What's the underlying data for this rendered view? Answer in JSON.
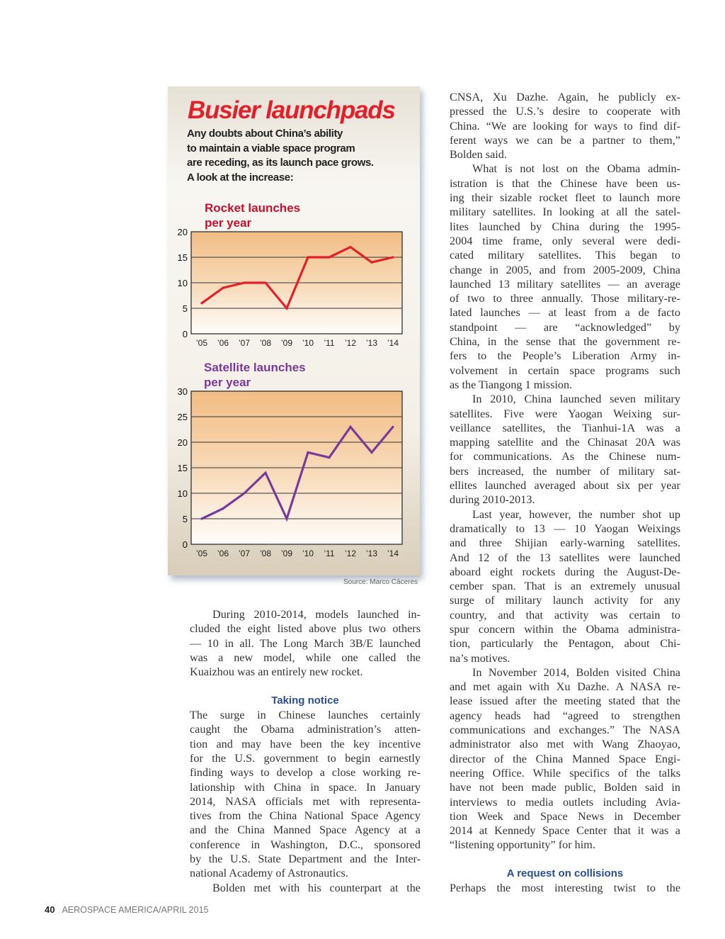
{
  "sidebar": {
    "title": "Busier launchpads",
    "subtitle_lines": [
      "Any doubts about China’s ability",
      "to maintain a viable space program",
      "are receding, as its launch pace grows.",
      "A look at the increase:"
    ],
    "source": "Source: Marco Cáceres"
  },
  "chart_data": [
    {
      "type": "line",
      "title_lines": [
        "Rocket launches",
        "per year"
      ],
      "categories": [
        "’05",
        "’06",
        "’07",
        "’08",
        "’09",
        "’10",
        "’11",
        "’12",
        "’13",
        "’14"
      ],
      "values": [
        6,
        9,
        10,
        10,
        5,
        15,
        15,
        17,
        14,
        15
      ],
      "yticks": [
        "0",
        "5",
        "10",
        "15",
        "20"
      ],
      "ylim": [
        0,
        20
      ],
      "color": "#e3202a",
      "title_color": "#c8102e",
      "grid": true
    },
    {
      "type": "line",
      "title_lines": [
        "Satellite launches",
        "per year"
      ],
      "categories": [
        "’05",
        "’06",
        "’07",
        "’08",
        "’09",
        "’10",
        "’11",
        "’12",
        "’13",
        "’14"
      ],
      "values": [
        5,
        7,
        10,
        14,
        5,
        18,
        17,
        23,
        18,
        23
      ],
      "yticks": [
        "0",
        "5",
        "10",
        "15",
        "20",
        "25",
        "30"
      ],
      "ylim": [
        0,
        30
      ],
      "color": "#7a3a9a",
      "title_color": "#7a3a9a",
      "grid": true
    }
  ],
  "columns": {
    "left": [
      {
        "type": "para",
        "indent": true,
        "lines": [
          "During 2010-2014, models launched in-",
          "cluded the eight listed above plus two others",
          "— 10 in all. The Long March 3B/E launched",
          "was a new model, while one called the",
          "Kuaizhou was an entirely new rocket."
        ]
      },
      {
        "type": "gap"
      },
      {
        "type": "heading",
        "text": "Taking notice"
      },
      {
        "type": "para",
        "indent": false,
        "lines": [
          "The surge in Chinese launches certainly",
          "caught the Obama administration’s atten-",
          "tion and may have been the key incentive",
          "for the U.S. government to begin earnestly",
          "finding ways to develop a close working re-",
          "lationship with China in space. In January",
          "2014, NASA officials met with representa-",
          "tives from the China National Space Agency",
          "and the China Manned Space Agency at a",
          "conference in Washington, D.C., sponsored",
          "by the U.S. State Department and the Inter-",
          "national Academy of Astronautics."
        ]
      },
      {
        "type": "para",
        "indent": true,
        "continues": true,
        "lines": [
          "Bolden met with his counterpart at the"
        ]
      }
    ],
    "right": [
      {
        "type": "para",
        "indent": false,
        "lines": [
          "CNSA, Xu Dazhe. Again, he publicly ex-",
          "pressed the U.S.’s desire to cooperate with",
          "China. “We are looking for ways to find dif-",
          "ferent ways we can be a partner to them,”",
          "Bolden said."
        ]
      },
      {
        "type": "para",
        "indent": true,
        "lines": [
          "What is not lost on the Obama admin-",
          "istration is that the Chinese have been us-",
          "ing their sizable rocket fleet to launch more",
          "military satellites. In looking at all the satel-",
          "lites launched by China during the 1995-",
          "2004 time frame, only several were dedi-",
          "cated military satellites. This began to",
          "change in 2005, and from 2005-2009, China",
          "launched 13 military satellites — an average",
          "of two to three annually. Those military-re-",
          "lated launches — at least from a de facto",
          "standpoint — are “acknowledged” by",
          "China, in the sense that the government re-",
          "fers to the People’s Liberation Army in-",
          "volvement in certain space programs such",
          "as the Tiangong 1 mission."
        ]
      },
      {
        "type": "para",
        "indent": true,
        "lines": [
          "In 2010, China launched seven military",
          "satellites. Five were Yaogan Weixing sur-",
          "veillance satellites, the Tianhui-1A was a",
          "mapping satellite and the Chinasat 20A was",
          "for communications. As the Chinese num-",
          "bers increased, the number of military sat-",
          "ellites launched averaged about six per year",
          "during 2010-2013."
        ]
      },
      {
        "type": "para",
        "indent": true,
        "lines": [
          "Last year, however, the number shot up",
          "dramatically to 13 — 10 Yaogan Weixings",
          "and three Shijian early-warning satellites.",
          "And 12 of the 13 satellites were launched",
          "aboard eight rockets during the August-De-",
          "cember span. That is an extremely unusual",
          "surge of military launch activity for any",
          "country, and that activity was certain to",
          "spur concern within the Obama administra-",
          "tion, particularly the Pentagon, about Chi-",
          "na’s motives."
        ]
      },
      {
        "type": "para",
        "indent": true,
        "lines": [
          "In November 2014, Bolden visited China",
          "and met again with Xu Dazhe. A NASA re-",
          "lease issued after the meeting stated that the",
          "agency heads had “agreed to strengthen",
          "communications and exchanges.” The NASA",
          "administrator also met with Wang Zhaoyao,",
          "director of the China Manned Space Engi-",
          "neering Office. While specifics of the talks",
          "have not been made public, Bolden said in",
          "interviews to media outlets including Avia-",
          "tion Week and Space News in December",
          "2014 at Kennedy Space Center that it was a",
          "“listening opportunity” for him."
        ]
      },
      {
        "type": "gap"
      },
      {
        "type": "heading",
        "text": "A request on collisions"
      },
      {
        "type": "para",
        "indent": false,
        "continues": true,
        "lines": [
          "Perhaps the most interesting twist to the"
        ]
      }
    ]
  },
  "footer": {
    "page_number": "40",
    "publication": "AEROSPACE AMERICA/APRIL 2015"
  }
}
